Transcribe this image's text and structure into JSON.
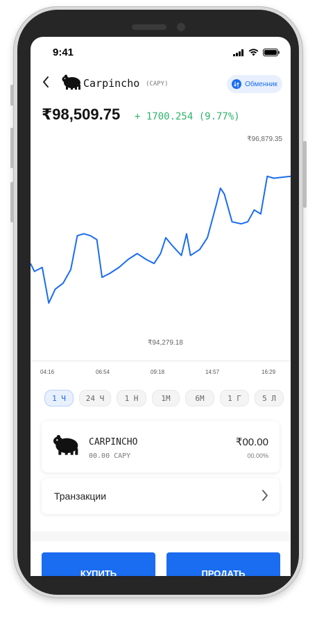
{
  "status_bar": {
    "time": "9:41"
  },
  "header": {
    "coin_name": "Carpincho",
    "coin_ticker": "(CAPY)",
    "exchange_label": "Обменник",
    "icons": {
      "back": "back-arrow-icon",
      "logo": "capybara-icon",
      "exchange": "swap-icon"
    }
  },
  "price": {
    "current": "₹98,509.75",
    "change": "+ 1700.254 (9.77%)"
  },
  "chart": {
    "high_label": "₹96,879.35",
    "low_label": "₹94,279.18",
    "time_labels": [
      "04:16",
      "06:54",
      "09:18",
      "14:57",
      "16:29"
    ]
  },
  "chart_data": {
    "type": "line",
    "title": "",
    "series_color": "#1a6cf0",
    "x_range": [
      0,
      1
    ],
    "y_range": [
      0,
      1
    ],
    "points": [
      [
        0.0,
        0.53
      ],
      [
        0.015,
        0.57
      ],
      [
        0.045,
        0.55
      ],
      [
        0.07,
        0.73
      ],
      [
        0.095,
        0.66
      ],
      [
        0.125,
        0.63
      ],
      [
        0.155,
        0.56
      ],
      [
        0.18,
        0.39
      ],
      [
        0.205,
        0.38
      ],
      [
        0.23,
        0.39
      ],
      [
        0.255,
        0.41
      ],
      [
        0.275,
        0.6
      ],
      [
        0.305,
        0.58
      ],
      [
        0.34,
        0.55
      ],
      [
        0.375,
        0.51
      ],
      [
        0.41,
        0.48
      ],
      [
        0.445,
        0.51
      ],
      [
        0.475,
        0.53
      ],
      [
        0.5,
        0.48
      ],
      [
        0.52,
        0.4
      ],
      [
        0.545,
        0.44
      ],
      [
        0.58,
        0.49
      ],
      [
        0.6,
        0.38
      ],
      [
        0.615,
        0.49
      ],
      [
        0.65,
        0.46
      ],
      [
        0.68,
        0.4
      ],
      [
        0.715,
        0.23
      ],
      [
        0.73,
        0.15
      ],
      [
        0.745,
        0.18
      ],
      [
        0.775,
        0.32
      ],
      [
        0.81,
        0.33
      ],
      [
        0.835,
        0.32
      ],
      [
        0.86,
        0.26
      ],
      [
        0.885,
        0.28
      ],
      [
        0.91,
        0.09
      ],
      [
        0.935,
        0.1
      ],
      [
        1.0,
        0.09
      ]
    ]
  },
  "periods": [
    {
      "label": "1 Ч",
      "active": true
    },
    {
      "label": "24 Ч",
      "active": false
    },
    {
      "label": "1 Н",
      "active": false
    },
    {
      "label": "1М",
      "active": false
    },
    {
      "label": "6М",
      "active": false
    },
    {
      "label": "1 Г",
      "active": false
    },
    {
      "label": "5 Л",
      "active": false
    }
  ],
  "holding": {
    "name": "CARPINCHO",
    "amount": "00.00 CAPY",
    "value": "₹00.00",
    "percent": "00.00%"
  },
  "transactions": {
    "label": "Транзакции"
  },
  "actions": {
    "buy": "КУПИТЬ",
    "sell": "ПРОДАТЬ"
  }
}
